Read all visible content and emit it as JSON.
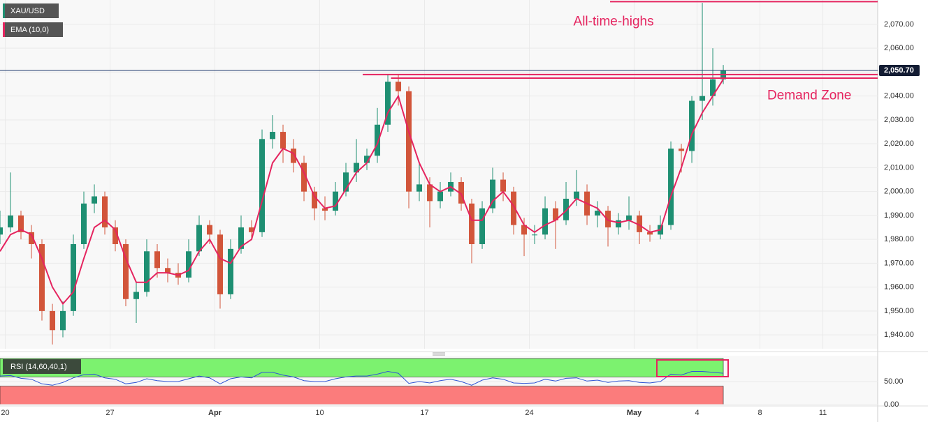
{
  "chart_data": [
    {
      "type": "candlestick",
      "symbol": "XAU/USD",
      "x": [
        0,
        1,
        2,
        3,
        4,
        5,
        6,
        7,
        8,
        9,
        10,
        11,
        12,
        13,
        14,
        15,
        16,
        17,
        18,
        19,
        20,
        21,
        22,
        23,
        24,
        25,
        26,
        27,
        28,
        29,
        30,
        31,
        32,
        33,
        34,
        35,
        36,
        37,
        38,
        39,
        40,
        41,
        42,
        43,
        44,
        45,
        46,
        47,
        48,
        49,
        50,
        51,
        52,
        53,
        54,
        55,
        56,
        57,
        58,
        59,
        60,
        61,
        62,
        63,
        64,
        65,
        66,
        67,
        68,
        69
      ],
      "open": [
        1982,
        1985,
        1990,
        1983,
        1978,
        1950,
        1942,
        1950,
        1978,
        1995,
        1998,
        1985,
        1978,
        1955,
        1958,
        1975,
        1968,
        1966,
        1964,
        1975,
        1986,
        1982,
        1957,
        1976,
        1985,
        1983,
        2022,
        2025,
        2018,
        2012,
        2000,
        1993,
        1992,
        2000,
        2008,
        2012,
        2015,
        2028,
        2046,
        2042,
        2000,
        2003,
        1996,
        2000,
        2004,
        1995,
        1978,
        1993,
        2005,
        2000,
        1986,
        1982,
        1982,
        1993,
        1988,
        1997,
        2000,
        1990,
        1992,
        1985,
        1988,
        1990,
        1983,
        1982,
        1986,
        2018,
        2017,
        2038,
        2040,
        2047
      ],
      "high": [
        1992,
        2008,
        1992,
        1986,
        1980,
        1953,
        1954,
        1982,
        2000,
        2003,
        2000,
        1988,
        1980,
        1962,
        1980,
        1978,
        1972,
        1970,
        1980,
        1990,
        1988,
        1984,
        1980,
        1990,
        1988,
        2026,
        2032,
        2028,
        2022,
        2015,
        2002,
        1998,
        2004,
        2012,
        2022,
        2018,
        2035,
        2049,
        2049,
        2044,
        2012,
        2006,
        2004,
        2008,
        2006,
        1997,
        1996,
        2010,
        2008,
        2002,
        1989,
        1986,
        1998,
        1996,
        2004,
        2009,
        2003,
        1996,
        1994,
        1991,
        1998,
        1992,
        1986,
        1990,
        2021,
        2020,
        2040,
        2079,
        2060,
        2053
      ],
      "low": [
        1978,
        1983,
        1980,
        1972,
        1946,
        1936,
        1939,
        1948,
        1976,
        1991,
        1982,
        1975,
        1952,
        1945,
        1956,
        1964,
        1962,
        1961,
        1962,
        1973,
        1978,
        1951,
        1955,
        1974,
        1980,
        1981,
        2018,
        2012,
        2008,
        1996,
        1988,
        1988,
        1990,
        1998,
        2004,
        2009,
        2012,
        2025,
        2036,
        1993,
        1996,
        1985,
        1993,
        1998,
        1992,
        1970,
        1976,
        1991,
        1996,
        1982,
        1973,
        1978,
        1980,
        1976,
        1986,
        1994,
        1986,
        1985,
        1977,
        1982,
        1984,
        1978,
        1979,
        1980,
        1984,
        2008,
        2012,
        2030,
        2036,
        2045
      ],
      "close": [
        1985,
        1990,
        1983,
        1978,
        1950,
        1942,
        1950,
        1978,
        1995,
        1998,
        1985,
        1978,
        1955,
        1958,
        1975,
        1968,
        1966,
        1964,
        1975,
        1986,
        1982,
        1957,
        1976,
        1985,
        1983,
        2022,
        2025,
        2018,
        2012,
        2000,
        1993,
        1992,
        2000,
        2008,
        2012,
        2015,
        2028,
        2046,
        2042,
        2000,
        2003,
        1996,
        2000,
        2004,
        1995,
        1978,
        1993,
        2005,
        2000,
        1986,
        1982,
        1982,
        1993,
        1988,
        1997,
        2000,
        1990,
        1992,
        1985,
        1988,
        1990,
        1983,
        1982,
        1986,
        2018,
        2017,
        2038,
        2040,
        2047,
        2050.7
      ],
      "up_color": "#1e8f72",
      "down_color": "#d2553a",
      "series": [
        {
          "name": "EMA (10,0)",
          "color": "#e5245f",
          "values": [
            1975,
            1982,
            1984,
            1982,
            1972,
            1960,
            1953,
            1958,
            1972,
            1985,
            1988,
            1984,
            1972,
            1962,
            1962,
            1966,
            1966,
            1965,
            1967,
            1975,
            1980,
            1972,
            1970,
            1977,
            1980,
            1996,
            2012,
            2018,
            2016,
            2008,
            1998,
            1993,
            1994,
            2001,
            2008,
            2012,
            2020,
            2033,
            2040,
            2025,
            2012,
            2003,
            2000,
            2002,
            1999,
            1988,
            1988,
            1996,
            2000,
            1994,
            1986,
            1983,
            1986,
            1988,
            1992,
            1997,
            1995,
            1993,
            1988,
            1987,
            1988,
            1986,
            1983,
            1984,
            1998,
            2010,
            2024,
            2033,
            2040,
            2047
          ]
        }
      ],
      "xlim": [
        0,
        83.73
      ],
      "ylim": [
        1934.2,
        2080.2
      ],
      "yticks": [
        {
          "value": 1940,
          "label": "1,940.00"
        },
        {
          "value": 1950,
          "label": "1,950.00"
        },
        {
          "value": 1960,
          "label": "1,960.00"
        },
        {
          "value": 1970,
          "label": "1,970.00"
        },
        {
          "value": 1980,
          "label": "1,980.00"
        },
        {
          "value": 1990,
          "label": "1,990.00"
        },
        {
          "value": 2000,
          "label": "2,000.00"
        },
        {
          "value": 2010,
          "label": "2,010.00"
        },
        {
          "value": 2020,
          "label": "2,020.00"
        },
        {
          "value": 2030,
          "label": "2,030.00"
        },
        {
          "value": 2040,
          "label": "2,040.00"
        },
        {
          "value": 2050,
          "label": "2,050.00"
        },
        {
          "value": 2060,
          "label": "2,060.00"
        },
        {
          "value": 2070,
          "label": "2,070.00"
        }
      ],
      "last_price": {
        "value": 2050.7,
        "label": "2,050.70"
      },
      "levels": [
        {
          "value": 2079.5,
          "from": 58.2,
          "color": "#e5245f"
        },
        {
          "value": 2049,
          "from": 34.6,
          "color": "#e5245f"
        },
        {
          "value": 2047.5,
          "from": 37.3,
          "color": "#e5245f"
        }
      ],
      "annotations": [
        {
          "text": "All-time-highs",
          "x": 54.7,
          "y": 2071
        },
        {
          "text": "Demand Zone",
          "x": 73.2,
          "y": 2040
        }
      ]
    },
    {
      "type": "line",
      "x": [
        0,
        1,
        2,
        3,
        4,
        5,
        6,
        7,
        8,
        9,
        10,
        11,
        12,
        13,
        14,
        15,
        16,
        17,
        18,
        19,
        20,
        21,
        22,
        23,
        24,
        25,
        26,
        27,
        28,
        29,
        30,
        31,
        32,
        33,
        34,
        35,
        36,
        37,
        38,
        39,
        40,
        41,
        42,
        43,
        44,
        45,
        46,
        47,
        48,
        49,
        50,
        51,
        52,
        53,
        54,
        55,
        56,
        57,
        58,
        59,
        60,
        61,
        62,
        63,
        64,
        65,
        66,
        67,
        68,
        69
      ],
      "series": [
        {
          "name": "RSI (14,60,40,1)",
          "color": "#2f55d4",
          "values": [
            62,
            63,
            57,
            55,
            45,
            42,
            48,
            58,
            65,
            66,
            58,
            55,
            45,
            48,
            56,
            52,
            50,
            50,
            56,
            62,
            58,
            45,
            56,
            60,
            58,
            70,
            70,
            64,
            60,
            52,
            50,
            50,
            56,
            60,
            62,
            62,
            66,
            72,
            68,
            46,
            50,
            47,
            52,
            55,
            50,
            42,
            53,
            58,
            55,
            47,
            46,
            47,
            55,
            51,
            57,
            58,
            51,
            53,
            48,
            51,
            52,
            48,
            47,
            50,
            66,
            64,
            72,
            72,
            70,
            68
          ]
        }
      ],
      "bands": [
        {
          "range": [
            60,
            100
          ],
          "color": "#7cf26f"
        },
        {
          "range": [
            0,
            40
          ],
          "color": "#fb7c7c"
        }
      ],
      "xlim": [
        0,
        83.73
      ],
      "ylim": [
        0,
        106
      ],
      "yticks": [
        {
          "value": 0,
          "label": "0.00"
        },
        {
          "value": 50,
          "label": "50.00"
        }
      ],
      "xticks": [
        {
          "value": 0.5,
          "label": "20"
        },
        {
          "value": 10.5,
          "label": "27"
        },
        {
          "value": 20.5,
          "label": "Apr"
        },
        {
          "value": 30.5,
          "label": "10"
        },
        {
          "value": 40.5,
          "label": "17"
        },
        {
          "value": 50.5,
          "label": "24"
        },
        {
          "value": 60.5,
          "label": "May"
        },
        {
          "value": 66.5,
          "label": "4"
        },
        {
          "value": 72.5,
          "label": "8"
        },
        {
          "value": 78.5,
          "label": "11"
        }
      ]
    }
  ]
}
